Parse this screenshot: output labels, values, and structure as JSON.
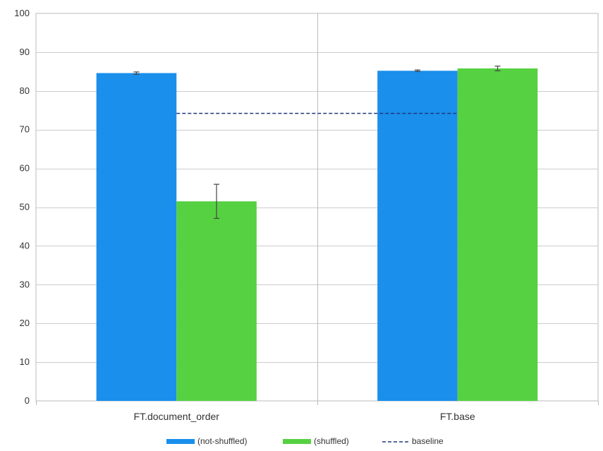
{
  "chart_data": {
    "type": "bar",
    "title": "",
    "xlabel": "",
    "ylabel": "",
    "categories": [
      "FT.document_order",
      "FT.base"
    ],
    "ylim": [
      0,
      100
    ],
    "yticks": [
      0,
      10,
      20,
      30,
      40,
      50,
      60,
      70,
      80,
      90,
      100
    ],
    "grid": true,
    "series": [
      {
        "name": "(not-shuffled)",
        "color": "#1a8fec",
        "values": [
          84.6,
          85.2
        ],
        "errors": [
          0.3,
          0.2
        ]
      },
      {
        "name": "(shuffled)",
        "color": "#55d141",
        "values": [
          51.5,
          85.8
        ],
        "errors": [
          4.4,
          0.6
        ]
      }
    ],
    "reference_lines": [
      {
        "name": "baseline",
        "value": 74.2,
        "color": "#1f3a7a",
        "style": "dashed"
      }
    ],
    "legend": {
      "placement": "bottom-center"
    }
  }
}
